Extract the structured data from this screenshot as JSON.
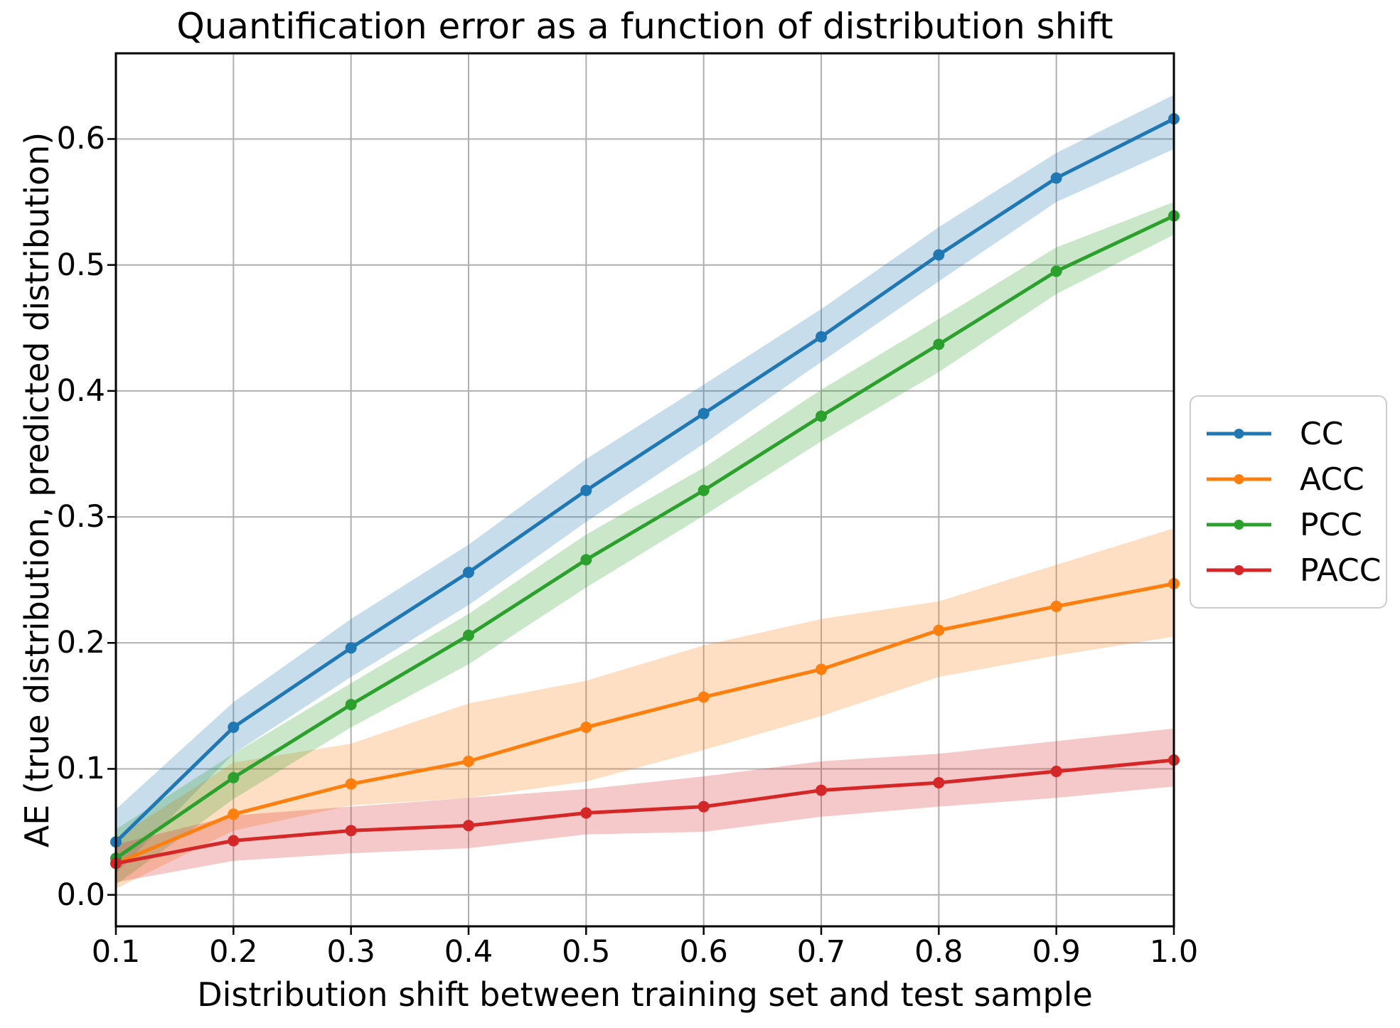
{
  "chart_data": {
    "type": "line",
    "title": "Quantification error as a function of distribution shift",
    "xlabel": "Distribution shift between training set and test sample",
    "ylabel": "AE (true distribution, predicted distribution)",
    "grid": true,
    "legend_position": "outside right, vertically centered",
    "xlim": [
      0.1,
      1.0
    ],
    "ylim": [
      -0.025,
      0.668
    ],
    "x": [
      0.1,
      0.2,
      0.3,
      0.4,
      0.5,
      0.6,
      0.7,
      0.8,
      0.9,
      1.0
    ],
    "xtick_labels": [
      "0.1",
      "0.2",
      "0.3",
      "0.4",
      "0.5",
      "0.6",
      "0.7",
      "0.8",
      "0.9",
      "1.0"
    ],
    "ytick_values": [
      0.0,
      0.1,
      0.2,
      0.3,
      0.4,
      0.5,
      0.6
    ],
    "ytick_labels": [
      "0.0",
      "0.1",
      "0.2",
      "0.3",
      "0.4",
      "0.5",
      "0.6"
    ],
    "marker": "dot",
    "band_opacity": 0.25,
    "grid_color": "#b0b0b0",
    "axis_color": "#000000",
    "legend_border_color": "#cccccc",
    "series": [
      {
        "name": "CC",
        "color": "#1f77b4",
        "values": [
          0.042,
          0.133,
          0.196,
          0.256,
          0.321,
          0.382,
          0.443,
          0.508,
          0.569,
          0.616
        ],
        "band_lower": [
          0.017,
          0.112,
          0.173,
          0.23,
          0.296,
          0.358,
          0.423,
          0.487,
          0.55,
          0.592
        ],
        "band_upper": [
          0.068,
          0.153,
          0.219,
          0.278,
          0.346,
          0.405,
          0.465,
          0.53,
          0.589,
          0.635
        ]
      },
      {
        "name": "ACC",
        "color": "#ff7f0e",
        "values": [
          0.025,
          0.064,
          0.088,
          0.106,
          0.133,
          0.157,
          0.179,
          0.21,
          0.229,
          0.247
        ],
        "band_lower": [
          0.005,
          0.051,
          0.071,
          0.077,
          0.09,
          0.115,
          0.142,
          0.173,
          0.19,
          0.205
        ],
        "band_upper": [
          0.045,
          0.105,
          0.12,
          0.152,
          0.17,
          0.198,
          0.219,
          0.233,
          0.262,
          0.291
        ]
      },
      {
        "name": "PCC",
        "color": "#2ca02c",
        "values": [
          0.029,
          0.093,
          0.151,
          0.206,
          0.266,
          0.321,
          0.38,
          0.437,
          0.495,
          0.539
        ],
        "band_lower": [
          0.008,
          0.076,
          0.133,
          0.183,
          0.244,
          0.301,
          0.36,
          0.415,
          0.477,
          0.524
        ],
        "band_upper": [
          0.052,
          0.112,
          0.168,
          0.223,
          0.286,
          0.339,
          0.401,
          0.457,
          0.514,
          0.55
        ]
      },
      {
        "name": "PACC",
        "color": "#d62728",
        "values": [
          0.025,
          0.043,
          0.051,
          0.055,
          0.065,
          0.07,
          0.083,
          0.089,
          0.098,
          0.107
        ],
        "band_lower": [
          0.01,
          0.027,
          0.033,
          0.037,
          0.048,
          0.05,
          0.062,
          0.07,
          0.077,
          0.086
        ],
        "band_upper": [
          0.04,
          0.063,
          0.07,
          0.077,
          0.084,
          0.094,
          0.106,
          0.112,
          0.122,
          0.132
        ]
      }
    ]
  }
}
